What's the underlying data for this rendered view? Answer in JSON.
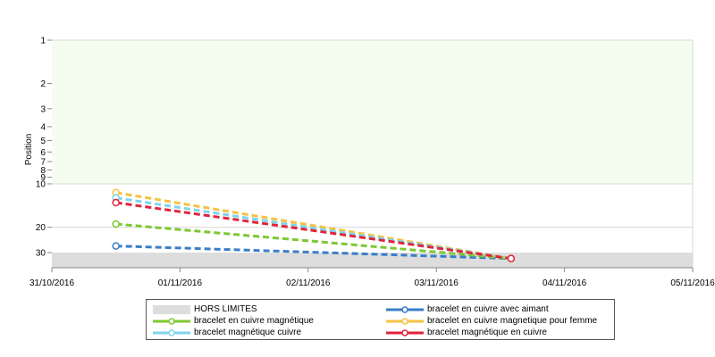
{
  "chart_data": {
    "type": "line",
    "ylabel": "Position",
    "y_scale": "log",
    "y_reversed": true,
    "y_ticks": [
      1,
      2,
      3,
      4,
      5,
      6,
      7,
      8,
      9,
      10,
      20,
      30
    ],
    "y_tick_labels": [
      "1",
      "2",
      "3",
      "4",
      "5",
      "6",
      "7",
      "8",
      "9",
      "10",
      "20",
      "30"
    ],
    "x_tick_labels": [
      "31/10/2016",
      "01/11/2016",
      "02/11/2016",
      "03/11/2016",
      "04/11/2016",
      "05/11/2016"
    ],
    "xlim": [
      "2016-10-31 00:00",
      "2016-11-05 00:00"
    ],
    "ylim": [
      1,
      35
    ],
    "top_zone": {
      "from": 1,
      "to": 10,
      "color": "#f5fdf0"
    },
    "out_of_range": {
      "label": "HORS LIMITES",
      "from": 30,
      "to": 35,
      "color": "#dddddd"
    },
    "series": [
      {
        "name": "bracelet en cuivre avec aimant",
        "color": "#3a7dc9",
        "points": [
          {
            "x": "2016-10-31 12:00",
            "y": 27
          },
          {
            "x": "2016-11-03 14:00",
            "y": 33
          }
        ]
      },
      {
        "name": "bracelet en cuivre magnétique",
        "color": "#7dc832",
        "points": [
          {
            "x": "2016-10-31 12:00",
            "y": 19
          },
          {
            "x": "2016-11-03 14:00",
            "y": 33
          }
        ]
      },
      {
        "name": "bracelet en cuivre magnetique pour femme",
        "color": "#f5c242",
        "points": [
          {
            "x": "2016-10-31 12:00",
            "y": 11.5
          },
          {
            "x": "2016-11-03 14:00",
            "y": 33
          }
        ]
      },
      {
        "name": "bracelet magnétique cuivre",
        "color": "#7fd3ec",
        "points": [
          {
            "x": "2016-10-31 12:00",
            "y": 12.5
          },
          {
            "x": "2016-11-03 14:00",
            "y": 33
          }
        ]
      },
      {
        "name": "bracelet magnétique en cuivre",
        "color": "#e0243c",
        "points": [
          {
            "x": "2016-10-31 12:00",
            "y": 13.5
          },
          {
            "x": "2016-11-03 14:00",
            "y": 33
          }
        ]
      }
    ],
    "legend": {
      "placement": "bottom",
      "entries": [
        "HORS LIMITES",
        "bracelet en cuivre avec aimant",
        "bracelet en cuivre magnétique",
        "bracelet en cuivre magnetique pour femme",
        "bracelet magnétique cuivre",
        "bracelet magnétique en cuivre"
      ]
    }
  }
}
